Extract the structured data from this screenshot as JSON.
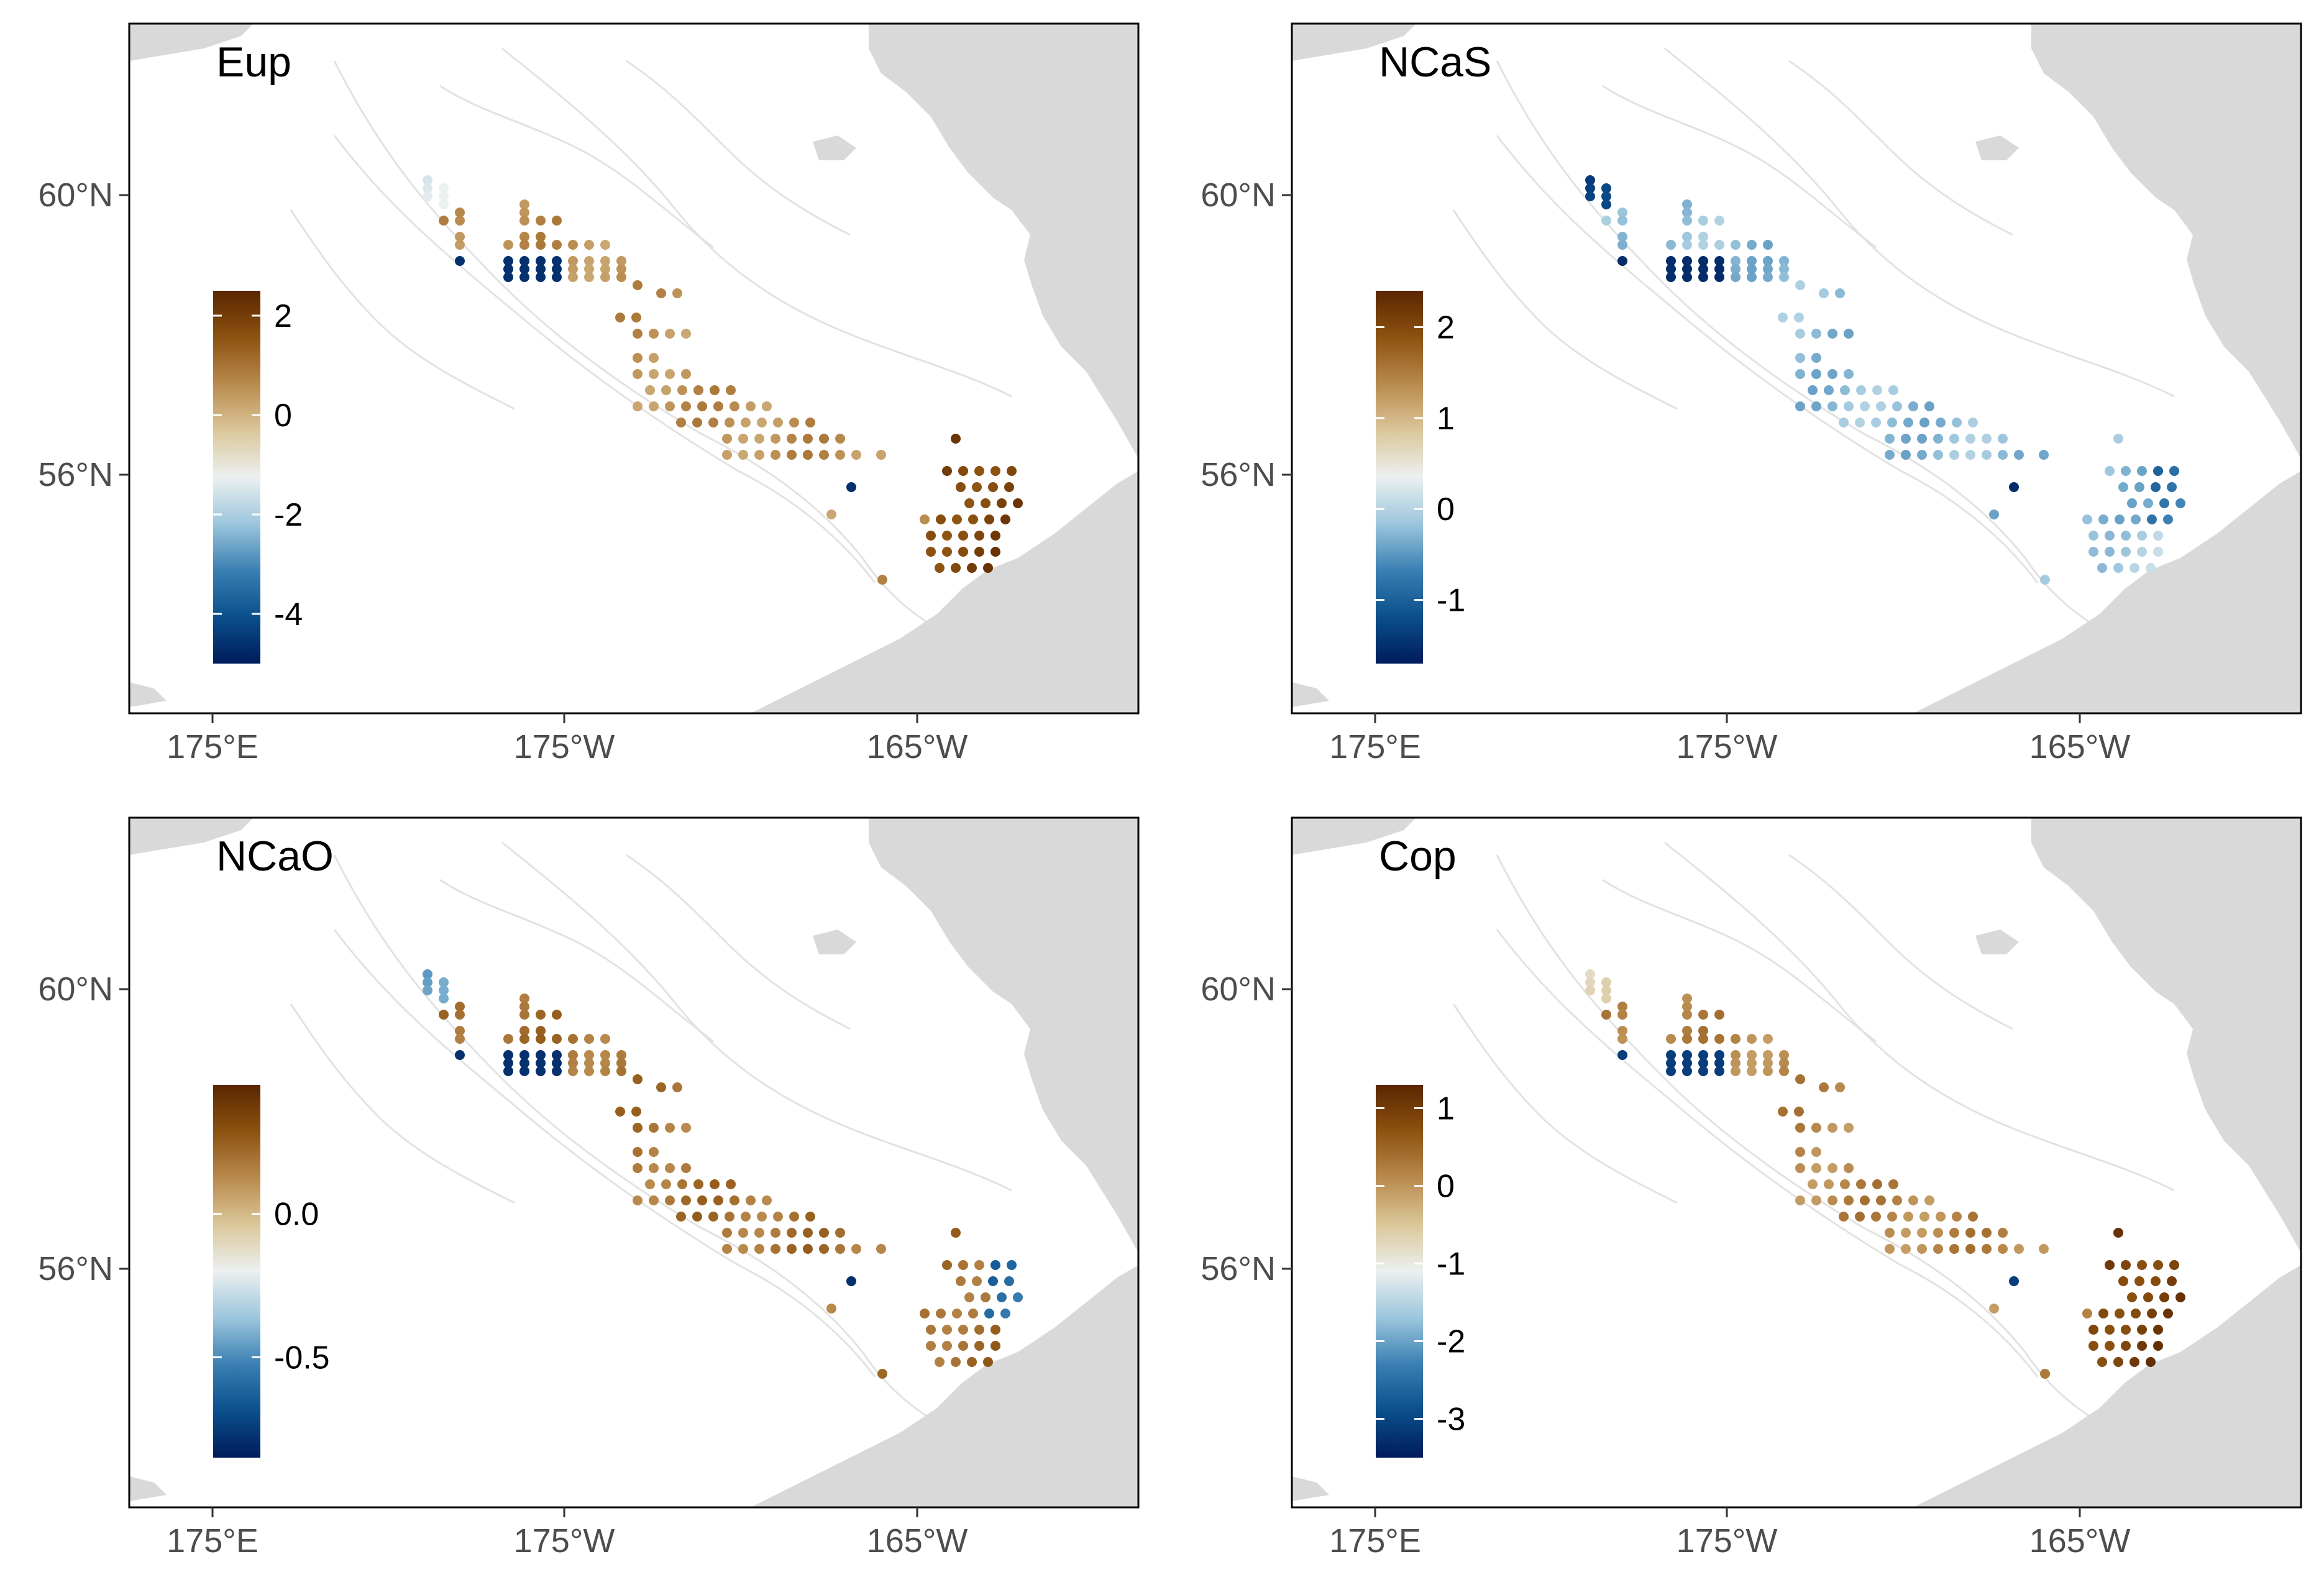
{
  "figure": {
    "panels": [
      {
        "title": "Eup",
        "x_ticks": [
          "175°E",
          "175°W",
          "165°W"
        ],
        "y_ticks": [
          "60°N",
          "56°N"
        ],
        "colorbar": {
          "labels": [
            "2",
            "0",
            "-2",
            "-4"
          ],
          "range": [
            -5.0,
            2.5
          ],
          "values": [
            2,
            0,
            -2,
            -4
          ]
        },
        "pattern": "eup"
      },
      {
        "title": "NCaS",
        "x_ticks": [
          "175°E",
          "175°W",
          "165°W"
        ],
        "y_ticks": [
          "60°N",
          "56°N"
        ],
        "colorbar": {
          "labels": [
            "2",
            "1",
            "0",
            "-1"
          ],
          "range": [
            -1.7,
            2.4
          ],
          "values": [
            2,
            1,
            0,
            -1
          ]
        },
        "pattern": "ncas"
      },
      {
        "title": "NCaO",
        "x_ticks": [
          "175°E",
          "175°W",
          "165°W"
        ],
        "y_ticks": [
          "60°N",
          "56°N"
        ],
        "colorbar": {
          "labels": [
            "0.0",
            "-0.5"
          ],
          "range": [
            -0.85,
            0.45
          ],
          "values": [
            0.0,
            -0.5
          ]
        },
        "pattern": "ncao"
      },
      {
        "title": "Cop",
        "x_ticks": [
          "175°E",
          "175°W",
          "165°W"
        ],
        "y_ticks": [
          "60°N",
          "56°N"
        ],
        "colorbar": {
          "labels": [
            "1",
            "0",
            "-1",
            "-2",
            "-3"
          ],
          "range": [
            -3.5,
            1.3
          ],
          "values": [
            1,
            0,
            -1,
            -2,
            -3
          ]
        },
        "pattern": "cop"
      }
    ],
    "colors": {
      "palette": [
        "#001c5a",
        "#0a4f8c",
        "#3a7fb2",
        "#9cc6dd",
        "#ecf0f0",
        "#dbc79a",
        "#b98a4d",
        "#8c5210",
        "#5a2600"
      ],
      "land": "#d9d9d9",
      "contour": "#e2e2e2",
      "axis": "#000000",
      "tick_label": "#4d4d4d"
    }
  }
}
